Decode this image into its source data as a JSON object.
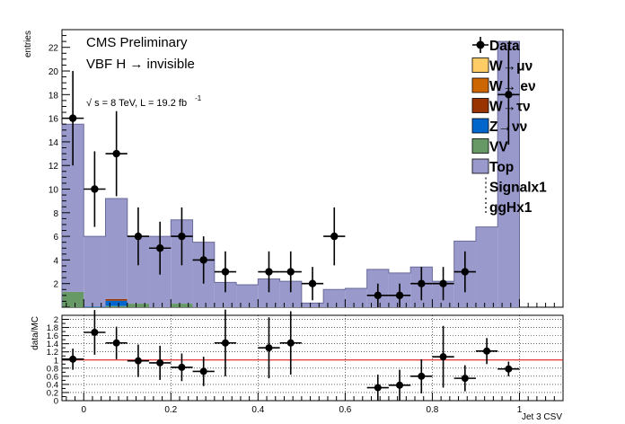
{
  "chart_data": {
    "type": "bar",
    "xlabel": "Jet 3 CSV",
    "ylabel_top": "entries",
    "ylabel_bottom": "data/MC",
    "xlim": [
      -0.05,
      1.1
    ],
    "ylim_top": [
      0,
      23.5
    ],
    "ylim_bottom": [
      0,
      2.1
    ],
    "x_ticks": [
      "0",
      "0.2",
      "0.4",
      "0.6",
      "0.8",
      "1"
    ],
    "y_ticks_top": [
      "2",
      "4",
      "6",
      "8",
      "10",
      "12",
      "14",
      "16",
      "18",
      "20",
      "22"
    ],
    "y_ticks_bottom": [
      "0",
      "0.2",
      "0.4",
      "0.6",
      "0.8",
      "1",
      "1.2",
      "1.4",
      "1.6",
      "1.8",
      "2"
    ],
    "annotations": {
      "experiment": "CMS Preliminary",
      "channel": "VBF H → invisible",
      "energy_prefix": "√",
      "energy": "s = 8 TeV, L = 19.2 fb",
      "energy_exp": "-1"
    },
    "legend": {
      "placement": "top-right",
      "entries": [
        {
          "label": "Data",
          "marker": "point"
        },
        {
          "label": "W→μν",
          "color": "#ffcc66"
        },
        {
          "label": "W→ eν",
          "color": "#cc6600"
        },
        {
          "label": "W→τν",
          "color": "#993300"
        },
        {
          "label": "Z→νν",
          "color": "#0066cc"
        },
        {
          "label": "VV",
          "color": "#669966"
        },
        {
          "label": "Top",
          "color": "#9999cc"
        },
        {
          "label": "Signalx1",
          "marker": "dashed"
        },
        {
          "label": "ggHx1",
          "marker": "dashed"
        }
      ]
    },
    "bin_edges": [
      -0.05,
      0.0,
      0.05,
      0.1,
      0.15,
      0.2,
      0.25,
      0.3,
      0.35,
      0.4,
      0.45,
      0.5,
      0.55,
      0.6,
      0.65,
      0.7,
      0.75,
      0.8,
      0.85,
      0.9,
      0.95,
      1.0
    ],
    "series": [
      {
        "name": "VV",
        "color": "#669966",
        "values": [
          1.3,
          0,
          0.1,
          0.3,
          0,
          0.3,
          0,
          0,
          0,
          0,
          0,
          0,
          0,
          0,
          0,
          0,
          0,
          0,
          0,
          0,
          0
        ]
      },
      {
        "name": "Z→νν",
        "color": "#0066cc",
        "values": [
          0,
          0.05,
          0.45,
          0,
          0,
          0,
          0,
          0,
          0,
          0,
          0,
          0,
          0,
          0,
          0,
          0,
          0,
          0,
          0,
          0,
          0
        ]
      },
      {
        "name": "W→τν",
        "color": "#993300",
        "values": [
          0,
          0,
          0.15,
          0,
          0,
          0,
          0,
          0,
          0,
          0,
          0,
          0,
          0,
          0,
          0,
          0,
          0,
          0,
          0,
          0,
          0
        ]
      },
      {
        "name": "Top",
        "color": "#9999cc",
        "values": [
          14.2,
          5.95,
          8.5,
          5.7,
          6.0,
          7.1,
          5.5,
          2.1,
          1.9,
          2.4,
          2.2,
          0.35,
          1.5,
          1.6,
          3.2,
          2.9,
          3.4,
          2.2,
          5.6,
          6.8,
          22.5
        ]
      }
    ],
    "data_points": [
      {
        "x": -0.025,
        "y": 16,
        "err": 4
      },
      {
        "x": 0.025,
        "y": 10,
        "err": 3.2
      },
      {
        "x": 0.075,
        "y": 13,
        "err": 3.6
      },
      {
        "x": 0.125,
        "y": 6,
        "err": 2.45
      },
      {
        "x": 0.175,
        "y": 5,
        "err": 2.24
      },
      {
        "x": 0.225,
        "y": 6,
        "err": 2.45
      },
      {
        "x": 0.275,
        "y": 4,
        "err": 2
      },
      {
        "x": 0.325,
        "y": 3,
        "err": 1.73
      },
      {
        "x": 0.425,
        "y": 3,
        "err": 1.73
      },
      {
        "x": 0.475,
        "y": 3,
        "err": 1.73
      },
      {
        "x": 0.525,
        "y": 2,
        "err": 1.41
      },
      {
        "x": 0.575,
        "y": 6,
        "err": 2.45
      },
      {
        "x": 0.675,
        "y": 1,
        "err": 1
      },
      {
        "x": 0.725,
        "y": 1,
        "err": 1
      },
      {
        "x": 0.775,
        "y": 2,
        "err": 1.41
      },
      {
        "x": 0.825,
        "y": 2,
        "err": 1.41
      },
      {
        "x": 0.875,
        "y": 3,
        "err": 1.73
      },
      {
        "x": 0.975,
        "y": 18,
        "err": 4.24
      }
    ],
    "ratio_points": [
      {
        "x": -0.025,
        "y": 1.02,
        "err": 0.26
      },
      {
        "x": 0.025,
        "y": 1.68,
        "err": 0.55
      },
      {
        "x": 0.075,
        "y": 1.42,
        "err": 0.4
      },
      {
        "x": 0.125,
        "y": 0.98,
        "err": 0.4
      },
      {
        "x": 0.175,
        "y": 0.93,
        "err": 0.42
      },
      {
        "x": 0.225,
        "y": 0.82,
        "err": 0.34
      },
      {
        "x": 0.275,
        "y": 0.72,
        "err": 0.36
      },
      {
        "x": 0.325,
        "y": 1.42,
        "err": 0.82
      },
      {
        "x": 0.425,
        "y": 1.3,
        "err": 0.75
      },
      {
        "x": 0.475,
        "y": 1.42,
        "err": 0.78
      },
      {
        "x": 0.675,
        "y": 0.32,
        "err": 0.32
      },
      {
        "x": 0.725,
        "y": 0.38,
        "err": 0.38
      },
      {
        "x": 0.775,
        "y": 0.6,
        "err": 0.42
      },
      {
        "x": 0.825,
        "y": 1.08,
        "err": 0.76
      },
      {
        "x": 0.875,
        "y": 0.55,
        "err": 0.32
      },
      {
        "x": 0.925,
        "y": 1.22,
        "err": 0.32
      },
      {
        "x": 0.975,
        "y": 0.78,
        "err": 0.18
      }
    ],
    "ratio_reference": 1.0,
    "grid_bottom": true,
    "grid_top": false
  }
}
